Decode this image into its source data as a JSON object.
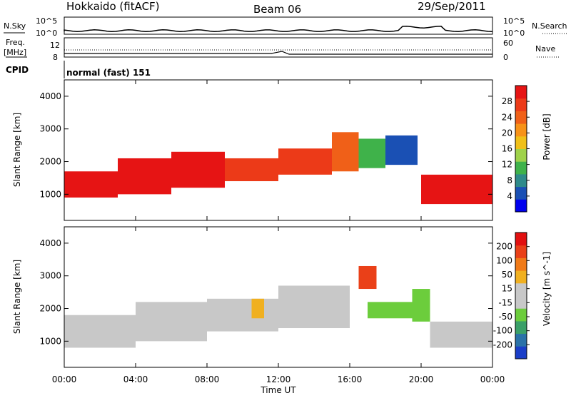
{
  "header": {
    "station": "Hokkaido (fitACF)",
    "beam": "Beam 06",
    "date": "29/Sep/2011"
  },
  "noise_panel": {
    "left_label": "N.Sky",
    "right_label": "N.Search",
    "ticks": [
      "10^5",
      "10^0"
    ]
  },
  "freq_panel": {
    "left_label_1": "Freq.",
    "left_label_2": "[MHz]",
    "right_label": "Nave",
    "left_ticks": [
      "12",
      "8"
    ],
    "right_ticks": [
      "60",
      "0"
    ]
  },
  "cpid": {
    "label": "CPID",
    "value": "normal (fast) 151"
  },
  "chart_data": [
    {
      "type": "heatmap",
      "title": "",
      "xlabel": "Time UT",
      "ylabel": "Slant Range [km]",
      "x_ticks": [
        "00:00",
        "04:00",
        "08:00",
        "12:00",
        "16:00",
        "20:00",
        "00:00"
      ],
      "xlim_hours": [
        0,
        24
      ],
      "ylim_km": [
        200,
        4500
      ],
      "y_ticks": [
        1000,
        2000,
        3000,
        4000
      ],
      "colorbar": {
        "label": "Power [dB]",
        "ticks": [
          "4",
          "8",
          "12",
          "16",
          "20",
          "24",
          "28"
        ],
        "colors": [
          "#0000ee",
          "#1a50b4",
          "#2e8a8a",
          "#3fb24a",
          "#9fd24a",
          "#f0c018",
          "#f79218",
          "#f06018",
          "#ec3a18",
          "#e61414"
        ]
      },
      "echo_bands": [
        {
          "start_h": 0.0,
          "end_h": 3.0,
          "lower_km": 900,
          "upper_km": 1700,
          "level": 9
        },
        {
          "start_h": 3.0,
          "end_h": 6.0,
          "lower_km": 1000,
          "upper_km": 2100,
          "level": 9
        },
        {
          "start_h": 6.0,
          "end_h": 9.0,
          "lower_km": 1200,
          "upper_km": 2300,
          "level": 9
        },
        {
          "start_h": 9.0,
          "end_h": 12.0,
          "lower_km": 1400,
          "upper_km": 2100,
          "level": 8
        },
        {
          "start_h": 12.0,
          "end_h": 15.0,
          "lower_km": 1600,
          "upper_km": 2400,
          "level": 8
        },
        {
          "start_h": 15.0,
          "end_h": 16.5,
          "lower_km": 1700,
          "upper_km": 2900,
          "level": 7
        },
        {
          "start_h": 16.5,
          "end_h": 18.0,
          "lower_km": 1800,
          "upper_km": 2700,
          "level": 3
        },
        {
          "start_h": 18.0,
          "end_h": 19.8,
          "lower_km": 1900,
          "upper_km": 2800,
          "level": 1
        },
        {
          "start_h": 20.0,
          "end_h": 24.0,
          "lower_km": 700,
          "upper_km": 1600,
          "level": 9
        }
      ]
    },
    {
      "type": "heatmap",
      "title": "",
      "xlabel": "Time UT",
      "ylabel": "Slant Range [km]",
      "x_ticks": [
        "00:00",
        "04:00",
        "08:00",
        "12:00",
        "16:00",
        "20:00",
        "00:00"
      ],
      "xlim_hours": [
        0,
        24
      ],
      "ylim_km": [
        200,
        4500
      ],
      "y_ticks": [
        1000,
        2000,
        3000,
        4000
      ],
      "colorbar": {
        "label": "Velocity [m s^-1]",
        "ticks": [
          "200",
          "100",
          "50",
          "15",
          "-15",
          "-50",
          "-100",
          "-200"
        ],
        "colors": [
          "#1a3ec8",
          "#2a72a8",
          "#3aa068",
          "#6ccd3c",
          "#c8c8c8",
          "#c8c8c8",
          "#f0b020",
          "#f07a18",
          "#ea4018",
          "#e21010"
        ]
      },
      "echo_bands": [
        {
          "start_h": 0.0,
          "end_h": 4.0,
          "lower_km": 800,
          "upper_km": 1800,
          "level": 4
        },
        {
          "start_h": 4.0,
          "end_h": 8.0,
          "lower_km": 1000,
          "upper_km": 2200,
          "level": 4
        },
        {
          "start_h": 8.0,
          "end_h": 12.0,
          "lower_km": 1300,
          "upper_km": 2300,
          "level": 4
        },
        {
          "start_h": 10.5,
          "end_h": 11.2,
          "lower_km": 1700,
          "upper_km": 2300,
          "level": 6
        },
        {
          "start_h": 12.0,
          "end_h": 16.0,
          "lower_km": 1400,
          "upper_km": 2700,
          "level": 4
        },
        {
          "start_h": 16.5,
          "end_h": 17.5,
          "lower_km": 2600,
          "upper_km": 3300,
          "level": 8
        },
        {
          "start_h": 17.0,
          "end_h": 19.5,
          "lower_km": 1700,
          "upper_km": 2200,
          "level": 3
        },
        {
          "start_h": 19.5,
          "end_h": 20.5,
          "lower_km": 1600,
          "upper_km": 2600,
          "level": 3
        },
        {
          "start_h": 20.5,
          "end_h": 24.0,
          "lower_km": 800,
          "upper_km": 1600,
          "level": 4
        }
      ]
    }
  ]
}
